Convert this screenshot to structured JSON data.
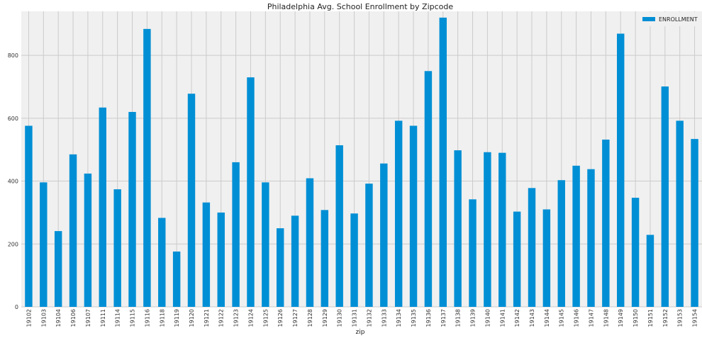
{
  "chart_data": {
    "type": "bar",
    "title": "Philadelphia Avg. School Enrollment by Zipcode",
    "xlabel": "zip",
    "ylabel": "",
    "ylim": [
      0,
      940
    ],
    "yticks": [
      0,
      200,
      400,
      600,
      800
    ],
    "grid": true,
    "legend_position": "top-right",
    "categories": [
      "19102",
      "19103",
      "19104",
      "19106",
      "19107",
      "19111",
      "19114",
      "19115",
      "19116",
      "19118",
      "19119",
      "19120",
      "19121",
      "19122",
      "19123",
      "19124",
      "19125",
      "19126",
      "19127",
      "19128",
      "19129",
      "19130",
      "19131",
      "19132",
      "19133",
      "19134",
      "19135",
      "19136",
      "19137",
      "19138",
      "19139",
      "19140",
      "19141",
      "19142",
      "19143",
      "19144",
      "19145",
      "19146",
      "19147",
      "19148",
      "19149",
      "19150",
      "19151",
      "19152",
      "19153",
      "19154"
    ],
    "series": [
      {
        "name": "ENROLLMENT",
        "color": "#008fd5",
        "values": [
          576,
          396,
          241,
          485,
          424,
          634,
          374,
          620,
          884,
          283,
          176,
          678,
          332,
          300,
          460,
          730,
          396,
          250,
          290,
          409,
          308,
          514,
          297,
          392,
          456,
          592,
          576,
          750,
          920,
          498,
          342,
          492,
          490,
          303,
          378,
          310,
          403,
          449,
          438,
          532,
          869,
          347,
          229,
          701,
          592,
          534
        ]
      }
    ]
  }
}
